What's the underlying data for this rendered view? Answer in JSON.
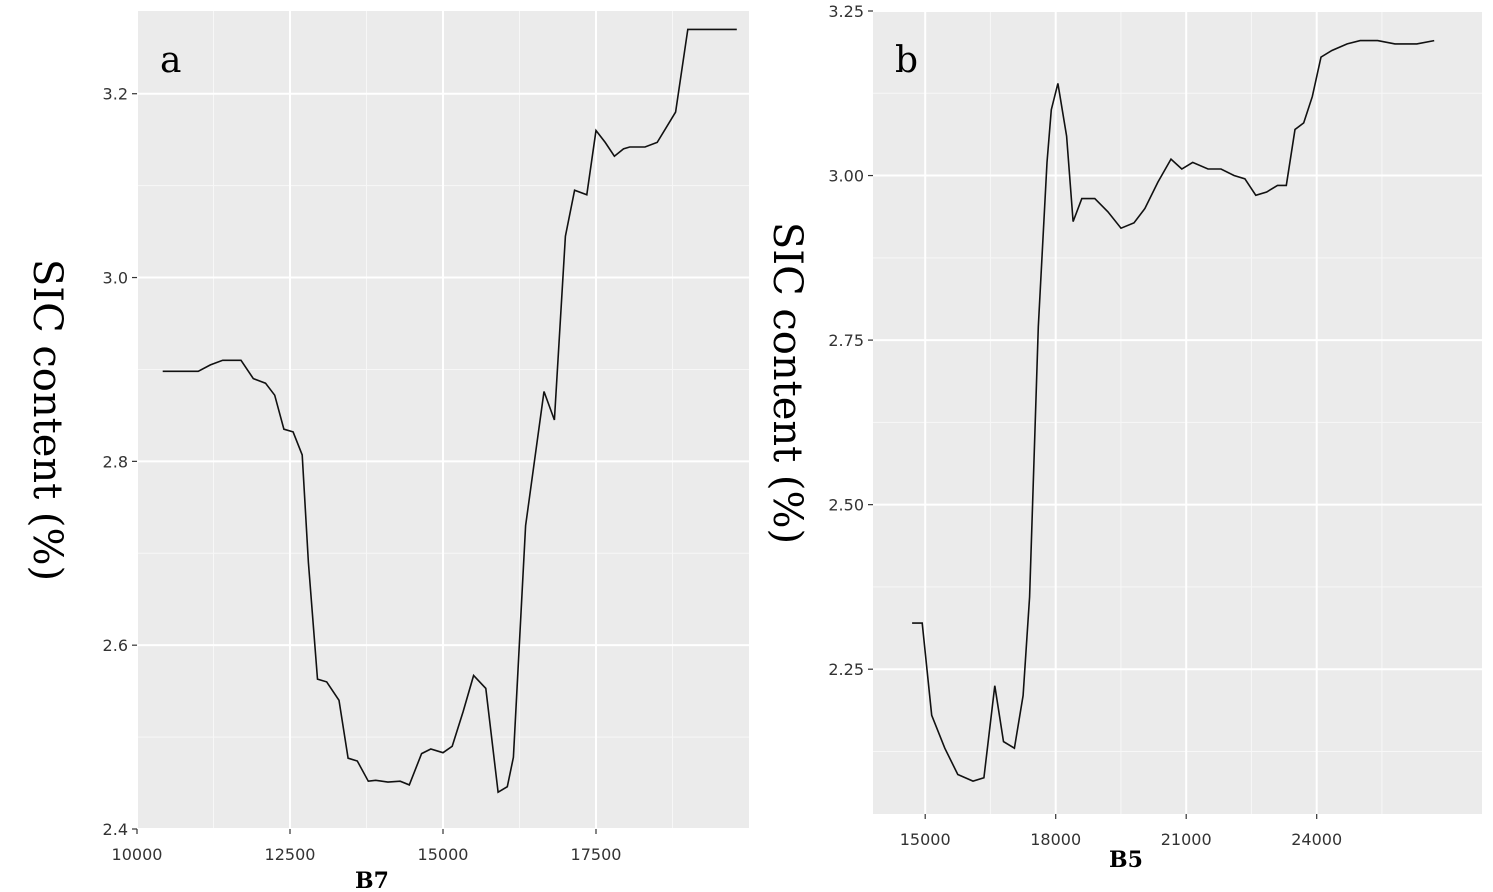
{
  "chart_data": [
    {
      "type": "line",
      "panel_label": "a",
      "xlabel": "B7",
      "ylabel": "SIC content (%)",
      "xlim": [
        10000,
        20000
      ],
      "ylim": [
        2.4,
        3.29
      ],
      "xticks": [
        10000,
        12500,
        15000,
        17500
      ],
      "xtick_labels": [
        "10000",
        "12500",
        "15000",
        "17500"
      ],
      "yticks": [
        2.4,
        2.6,
        2.8,
        3.0,
        3.2
      ],
      "ytick_labels": [
        "2.4",
        "2.6",
        "2.8",
        "3.0",
        "3.2"
      ],
      "grid": true,
      "x": [
        10420,
        10740,
        11000,
        11200,
        11400,
        11700,
        11900,
        12100,
        12250,
        12400,
        12550,
        12700,
        12800,
        12950,
        13100,
        13300,
        13450,
        13600,
        13780,
        13900,
        14100,
        14300,
        14450,
        14650,
        14800,
        15000,
        15150,
        15330,
        15500,
        15700,
        15900,
        16050,
        16150,
        16350,
        16650,
        16820,
        17000,
        17150,
        17350,
        17500,
        17650,
        17800,
        17950,
        18050,
        18300,
        18500,
        18800,
        19000,
        19150,
        19350,
        19500,
        19800
      ],
      "y": [
        2.898,
        2.898,
        2.898,
        2.905,
        2.91,
        2.91,
        2.89,
        2.885,
        2.872,
        2.835,
        2.832,
        2.807,
        2.69,
        2.563,
        2.56,
        2.54,
        2.477,
        2.474,
        2.452,
        2.453,
        2.451,
        2.452,
        2.448,
        2.482,
        2.487,
        2.483,
        2.49,
        2.528,
        2.567,
        2.553,
        2.44,
        2.446,
        2.478,
        2.73,
        2.876,
        2.845,
        3.045,
        3.095,
        3.09,
        3.16,
        3.147,
        3.132,
        3.14,
        3.142,
        3.142,
        3.147,
        3.18,
        3.27,
        3.27,
        3.27,
        3.27,
        3.27
      ]
    },
    {
      "type": "line",
      "panel_label": "b",
      "xlabel": "B5",
      "ylabel": "SIC content (%)",
      "xlim": [
        13800,
        27800
      ],
      "ylim": [
        2.03,
        3.25
      ],
      "xticks": [
        15000,
        18000,
        21000,
        24000
      ],
      "xtick_labels": [
        "15000",
        "18000",
        "21000",
        "24000"
      ],
      "yticks": [
        2.25,
        2.5,
        2.75,
        3.0,
        3.25
      ],
      "ytick_labels": [
        "2.25",
        "2.50",
        "2.75",
        "3.00",
        "3.25"
      ],
      "grid": true,
      "x": [
        14700,
        14930,
        15150,
        15450,
        15750,
        16100,
        16350,
        16600,
        16800,
        17050,
        17250,
        17400,
        17600,
        17800,
        17900,
        18050,
        18250,
        18400,
        18600,
        18900,
        19200,
        19500,
        19800,
        20050,
        20350,
        20650,
        20900,
        21150,
        21500,
        21800,
        22100,
        22350,
        22600,
        22850,
        23100,
        23300,
        23500,
        23700,
        23900,
        24100,
        24350,
        24700,
        25000,
        25400,
        25800,
        26300,
        26700
      ],
      "y": [
        2.32,
        2.32,
        2.18,
        2.13,
        2.09,
        2.08,
        2.085,
        2.225,
        2.14,
        2.13,
        2.21,
        2.36,
        2.77,
        3.02,
        3.1,
        3.14,
        3.06,
        2.93,
        2.965,
        2.965,
        2.945,
        2.92,
        2.928,
        2.95,
        2.99,
        3.025,
        3.01,
        3.02,
        3.01,
        3.01,
        3.0,
        2.995,
        2.97,
        2.975,
        2.985,
        2.985,
        3.07,
        3.08,
        3.12,
        3.18,
        3.19,
        3.2,
        3.205,
        3.205,
        3.2,
        3.2,
        3.205
      ]
    }
  ]
}
